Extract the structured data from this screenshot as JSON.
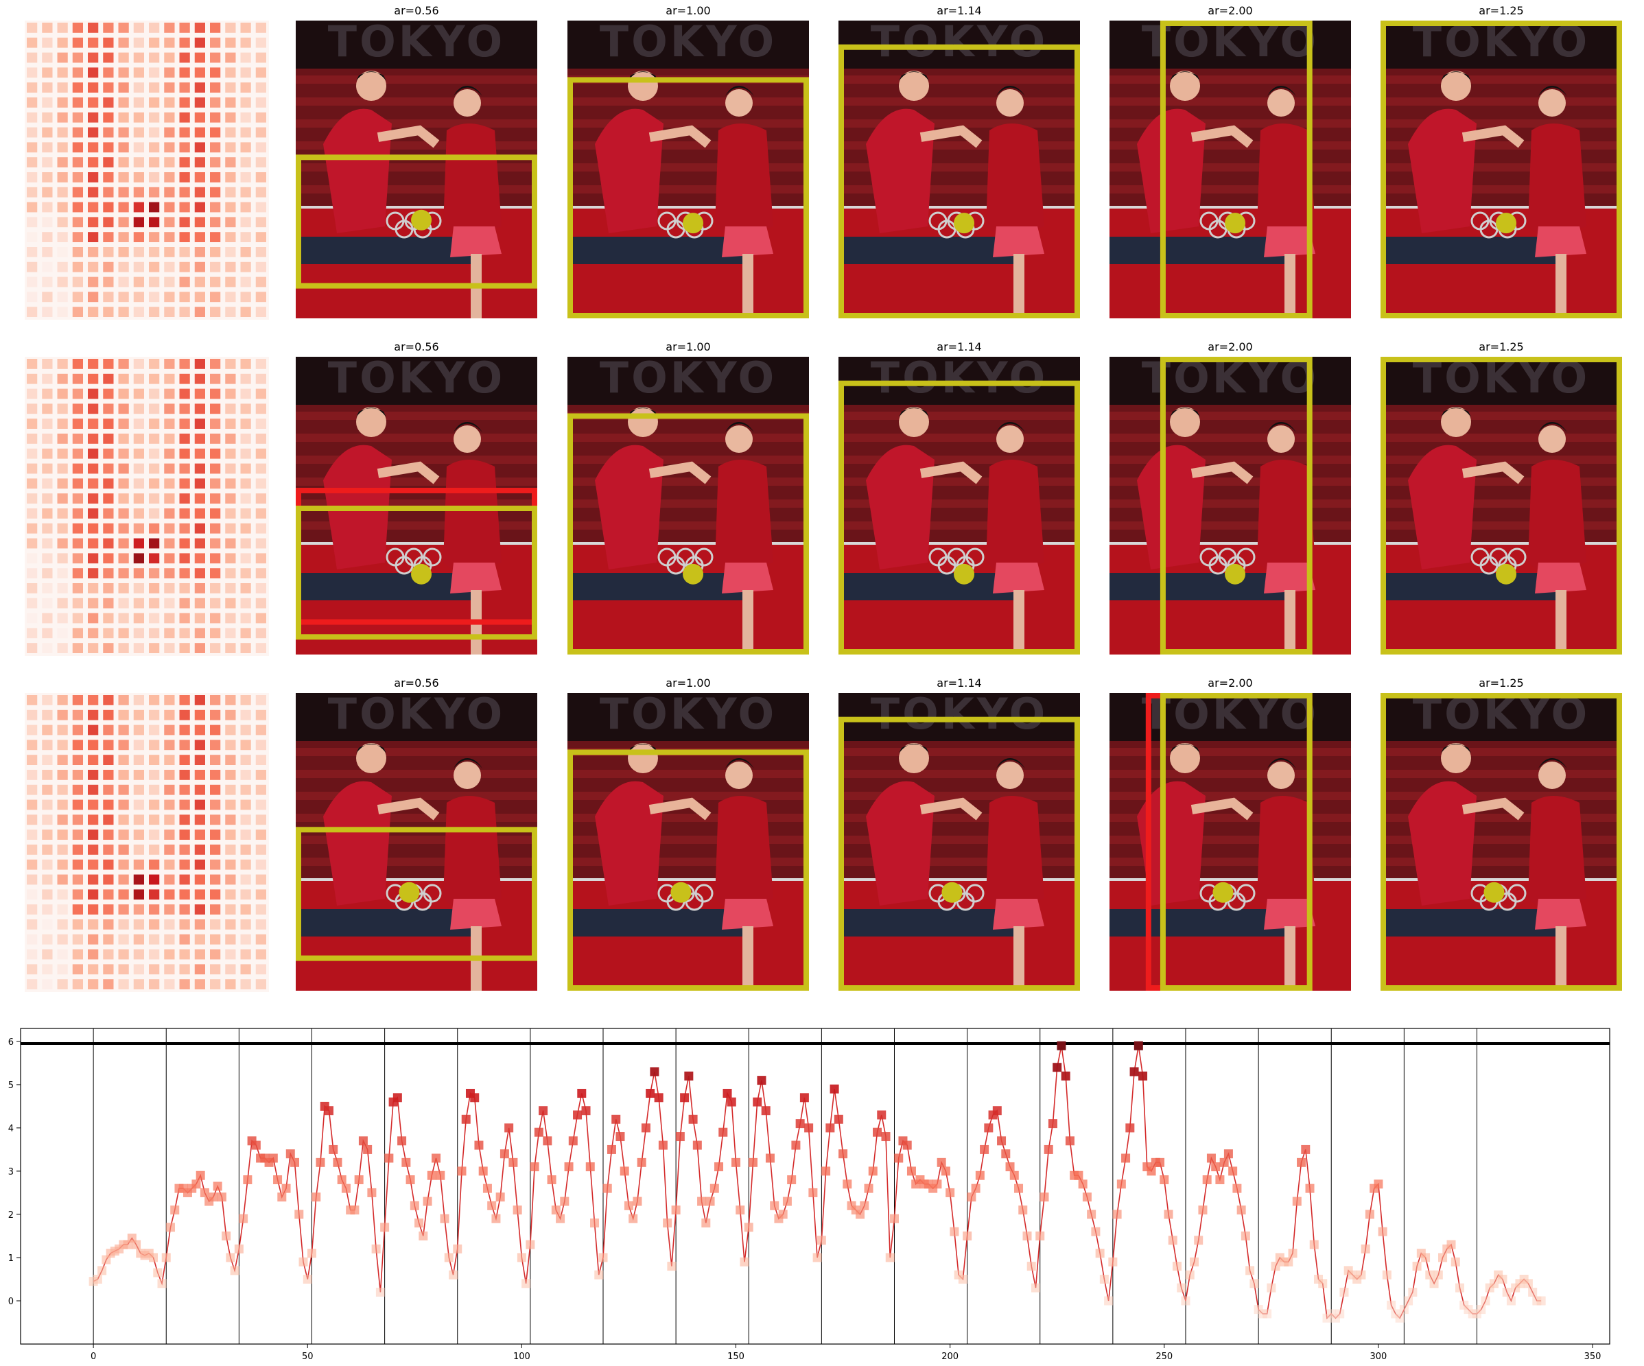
{
  "colors": {
    "box_yellow": "#c8c11a",
    "box_red": "#ee1c1c",
    "line": "#d42a2a",
    "threshold": "#000000"
  },
  "rows": [
    {
      "panels": [
        {
          "title": "ar=0.56",
          "box": [
            0.0,
            0.45,
            1.0,
            0.9
          ],
          "red_box": null,
          "dot": [
            0.52,
            0.67
          ]
        },
        {
          "title": "ar=1.00",
          "box": [
            0.0,
            0.19,
            1.0,
            1.0
          ],
          "red_box": null,
          "dot": [
            0.52,
            0.68
          ]
        },
        {
          "title": "ar=1.14",
          "box": [
            0.0,
            0.08,
            1.0,
            1.0
          ],
          "red_box": null,
          "dot": [
            0.52,
            0.68
          ]
        },
        {
          "title": "ar=2.00",
          "box": [
            0.21,
            0.0,
            0.84,
            1.0
          ],
          "red_box": null,
          "dot": [
            0.52,
            0.68
          ]
        },
        {
          "title": "ar=1.25",
          "box": [
            0.0,
            0.0,
            1.0,
            1.0
          ],
          "red_box": null,
          "dot": [
            0.52,
            0.68
          ]
        }
      ]
    },
    {
      "panels": [
        {
          "title": "ar=0.56",
          "box": [
            0.0,
            0.5,
            1.0,
            0.95
          ],
          "red_box": [
            0.0,
            0.44,
            1.0,
            0.9
          ],
          "dot": [
            0.52,
            0.73
          ]
        },
        {
          "title": "ar=1.00",
          "box": [
            0.0,
            0.19,
            1.0,
            1.0
          ],
          "red_box": null,
          "dot": [
            0.52,
            0.73
          ]
        },
        {
          "title": "ar=1.14",
          "box": [
            0.0,
            0.08,
            1.0,
            1.0
          ],
          "red_box": null,
          "dot": [
            0.52,
            0.73
          ]
        },
        {
          "title": "ar=2.00",
          "box": [
            0.21,
            0.0,
            0.84,
            1.0
          ],
          "red_box": null,
          "dot": [
            0.52,
            0.73
          ]
        },
        {
          "title": "ar=1.25",
          "box": [
            0.0,
            0.0,
            1.0,
            1.0
          ],
          "red_box": null,
          "dot": [
            0.52,
            0.73
          ]
        }
      ]
    },
    {
      "panels": [
        {
          "title": "ar=0.56",
          "box": [
            0.0,
            0.45,
            1.0,
            0.9
          ],
          "red_box": null,
          "dot": [
            0.47,
            0.67
          ]
        },
        {
          "title": "ar=1.00",
          "box": [
            0.0,
            0.19,
            1.0,
            1.0
          ],
          "red_box": null,
          "dot": [
            0.47,
            0.67
          ]
        },
        {
          "title": "ar=1.14",
          "box": [
            0.0,
            0.08,
            1.0,
            1.0
          ],
          "red_box": null,
          "dot": [
            0.47,
            0.67
          ]
        },
        {
          "title": "ar=2.00",
          "box": [
            0.21,
            0.0,
            0.84,
            1.0
          ],
          "red_box": [
            0.15,
            0.0,
            0.84,
            1.0
          ],
          "dot": [
            0.47,
            0.67
          ]
        },
        {
          "title": "ar=1.25",
          "box": [
            0.0,
            0.0,
            1.0,
            1.0
          ],
          "red_box": null,
          "dot": [
            0.47,
            0.67
          ]
        }
      ]
    }
  ],
  "chart_data": {
    "type": "line",
    "x_ticks": [
      0,
      50,
      100,
      150,
      200,
      250,
      300,
      350
    ],
    "y_ticks": [
      0,
      1,
      2,
      3,
      4,
      5,
      6
    ],
    "xlim": [
      -17,
      354
    ],
    "ylim": [
      -1,
      6.3
    ],
    "threshold": 5.95,
    "segment_boundaries": [
      0,
      17,
      34,
      51,
      68,
      85,
      102,
      119,
      136,
      153,
      170,
      187,
      204,
      221,
      238,
      255,
      272,
      289,
      306,
      323
    ],
    "segments": [
      [
        0.45,
        0.5,
        0.7,
        0.95,
        1.1,
        1.15,
        1.2,
        1.3,
        1.3,
        1.45,
        1.3,
        1.1,
        1.05,
        1.1,
        1.0,
        0.65,
        0.4
      ],
      [
        1.0,
        1.7,
        2.1,
        2.6,
        2.6,
        2.5,
        2.6,
        2.7,
        2.9,
        2.5,
        2.3,
        2.4,
        2.65,
        2.4,
        1.5,
        1.0,
        0.7
      ],
      [
        1.2,
        1.9,
        2.8,
        3.7,
        3.6,
        3.3,
        3.3,
        3.2,
        3.3,
        2.8,
        2.4,
        2.6,
        3.4,
        3.2,
        2.0,
        0.9,
        0.5
      ],
      [
        1.1,
        2.4,
        3.2,
        4.5,
        4.4,
        3.5,
        3.2,
        2.8,
        2.6,
        2.1,
        2.1,
        2.8,
        3.7,
        3.5,
        2.5,
        1.2,
        0.2
      ],
      [
        1.7,
        3.3,
        4.6,
        4.7,
        3.7,
        3.2,
        2.8,
        2.2,
        1.8,
        1.5,
        2.3,
        2.9,
        3.3,
        2.9,
        1.9,
        1.0,
        0.6
      ],
      [
        1.2,
        3.0,
        4.2,
        4.8,
        4.7,
        3.6,
        3.0,
        2.6,
        2.2,
        1.9,
        2.4,
        3.4,
        4.0,
        3.2,
        2.1,
        1.0,
        0.4
      ],
      [
        1.3,
        3.1,
        3.9,
        4.4,
        3.7,
        2.8,
        2.1,
        1.9,
        2.3,
        3.1,
        3.7,
        4.3,
        4.8,
        4.4,
        3.1,
        1.8,
        0.6
      ],
      [
        1.0,
        2.6,
        3.5,
        4.2,
        3.8,
        3.0,
        2.2,
        1.9,
        2.3,
        3.2,
        4.0,
        4.8,
        5.3,
        4.7,
        3.6,
        1.8,
        0.8
      ],
      [
        2.1,
        3.8,
        4.7,
        5.2,
        4.2,
        3.6,
        2.3,
        1.8,
        2.3,
        2.6,
        3.1,
        3.9,
        4.8,
        4.6,
        3.2,
        2.1,
        0.9
      ],
      [
        1.7,
        3.2,
        4.6,
        5.1,
        4.4,
        3.3,
        2.2,
        1.9,
        2.0,
        2.3,
        2.8,
        3.6,
        4.1,
        4.7,
        4.0,
        2.5,
        1.0
      ],
      [
        1.4,
        3.0,
        4.0,
        4.9,
        4.2,
        3.4,
        2.7,
        2.2,
        2.1,
        2.0,
        2.2,
        2.6,
        3.0,
        3.9,
        4.3,
        3.8,
        1.0
      ],
      [
        1.9,
        3.3,
        3.7,
        3.6,
        3.0,
        2.7,
        2.8,
        2.7,
        2.7,
        2.6,
        2.7,
        3.2,
        3.0,
        2.5,
        1.6,
        0.6,
        0.5
      ],
      [
        1.5,
        2.4,
        2.6,
        2.9,
        3.5,
        4.0,
        4.3,
        4.4,
        3.7,
        3.4,
        3.1,
        2.9,
        2.6,
        2.1,
        1.5,
        0.8,
        0.3
      ],
      [
        1.5,
        2.4,
        3.5,
        4.1,
        5.4,
        5.9,
        5.2,
        3.7,
        2.9,
        2.9,
        2.7,
        2.4,
        2.0,
        1.6,
        1.1,
        0.5,
        0.0
      ],
      [
        0.9,
        2.0,
        2.7,
        3.3,
        4.0,
        5.3,
        5.9,
        5.2,
        3.1,
        3.0,
        3.2,
        3.2,
        2.8,
        2.0,
        1.4,
        0.8,
        0.3
      ],
      [
        0.0,
        0.6,
        0.9,
        1.4,
        2.1,
        2.8,
        3.3,
        3.1,
        2.8,
        3.2,
        3.4,
        3.0,
        2.6,
        2.1,
        1.5,
        0.7,
        0.4
      ],
      [
        -0.2,
        -0.3,
        -0.3,
        0.3,
        0.8,
        1.0,
        0.9,
        0.9,
        1.1,
        2.3,
        3.2,
        3.5,
        2.6,
        1.3,
        0.5,
        0.4,
        -0.4
      ],
      [
        -0.3,
        -0.4,
        -0.3,
        0.2,
        0.7,
        0.6,
        0.5,
        0.6,
        1.2,
        2.0,
        2.6,
        2.7,
        1.6,
        0.6,
        -0.1,
        -0.3,
        -0.4
      ],
      [
        -0.2,
        0.0,
        0.2,
        0.8,
        1.1,
        1.0,
        0.6,
        0.4,
        0.6,
        1.0,
        1.2,
        1.3,
        0.9,
        0.3,
        -0.1,
        -0.2,
        -0.3
      ],
      [
        -0.3,
        -0.2,
        0.0,
        0.3,
        0.4,
        0.6,
        0.5,
        0.2,
        0.0,
        0.3,
        0.4,
        0.5,
        0.4,
        0.2,
        0.0,
        0.0
      ]
    ]
  }
}
